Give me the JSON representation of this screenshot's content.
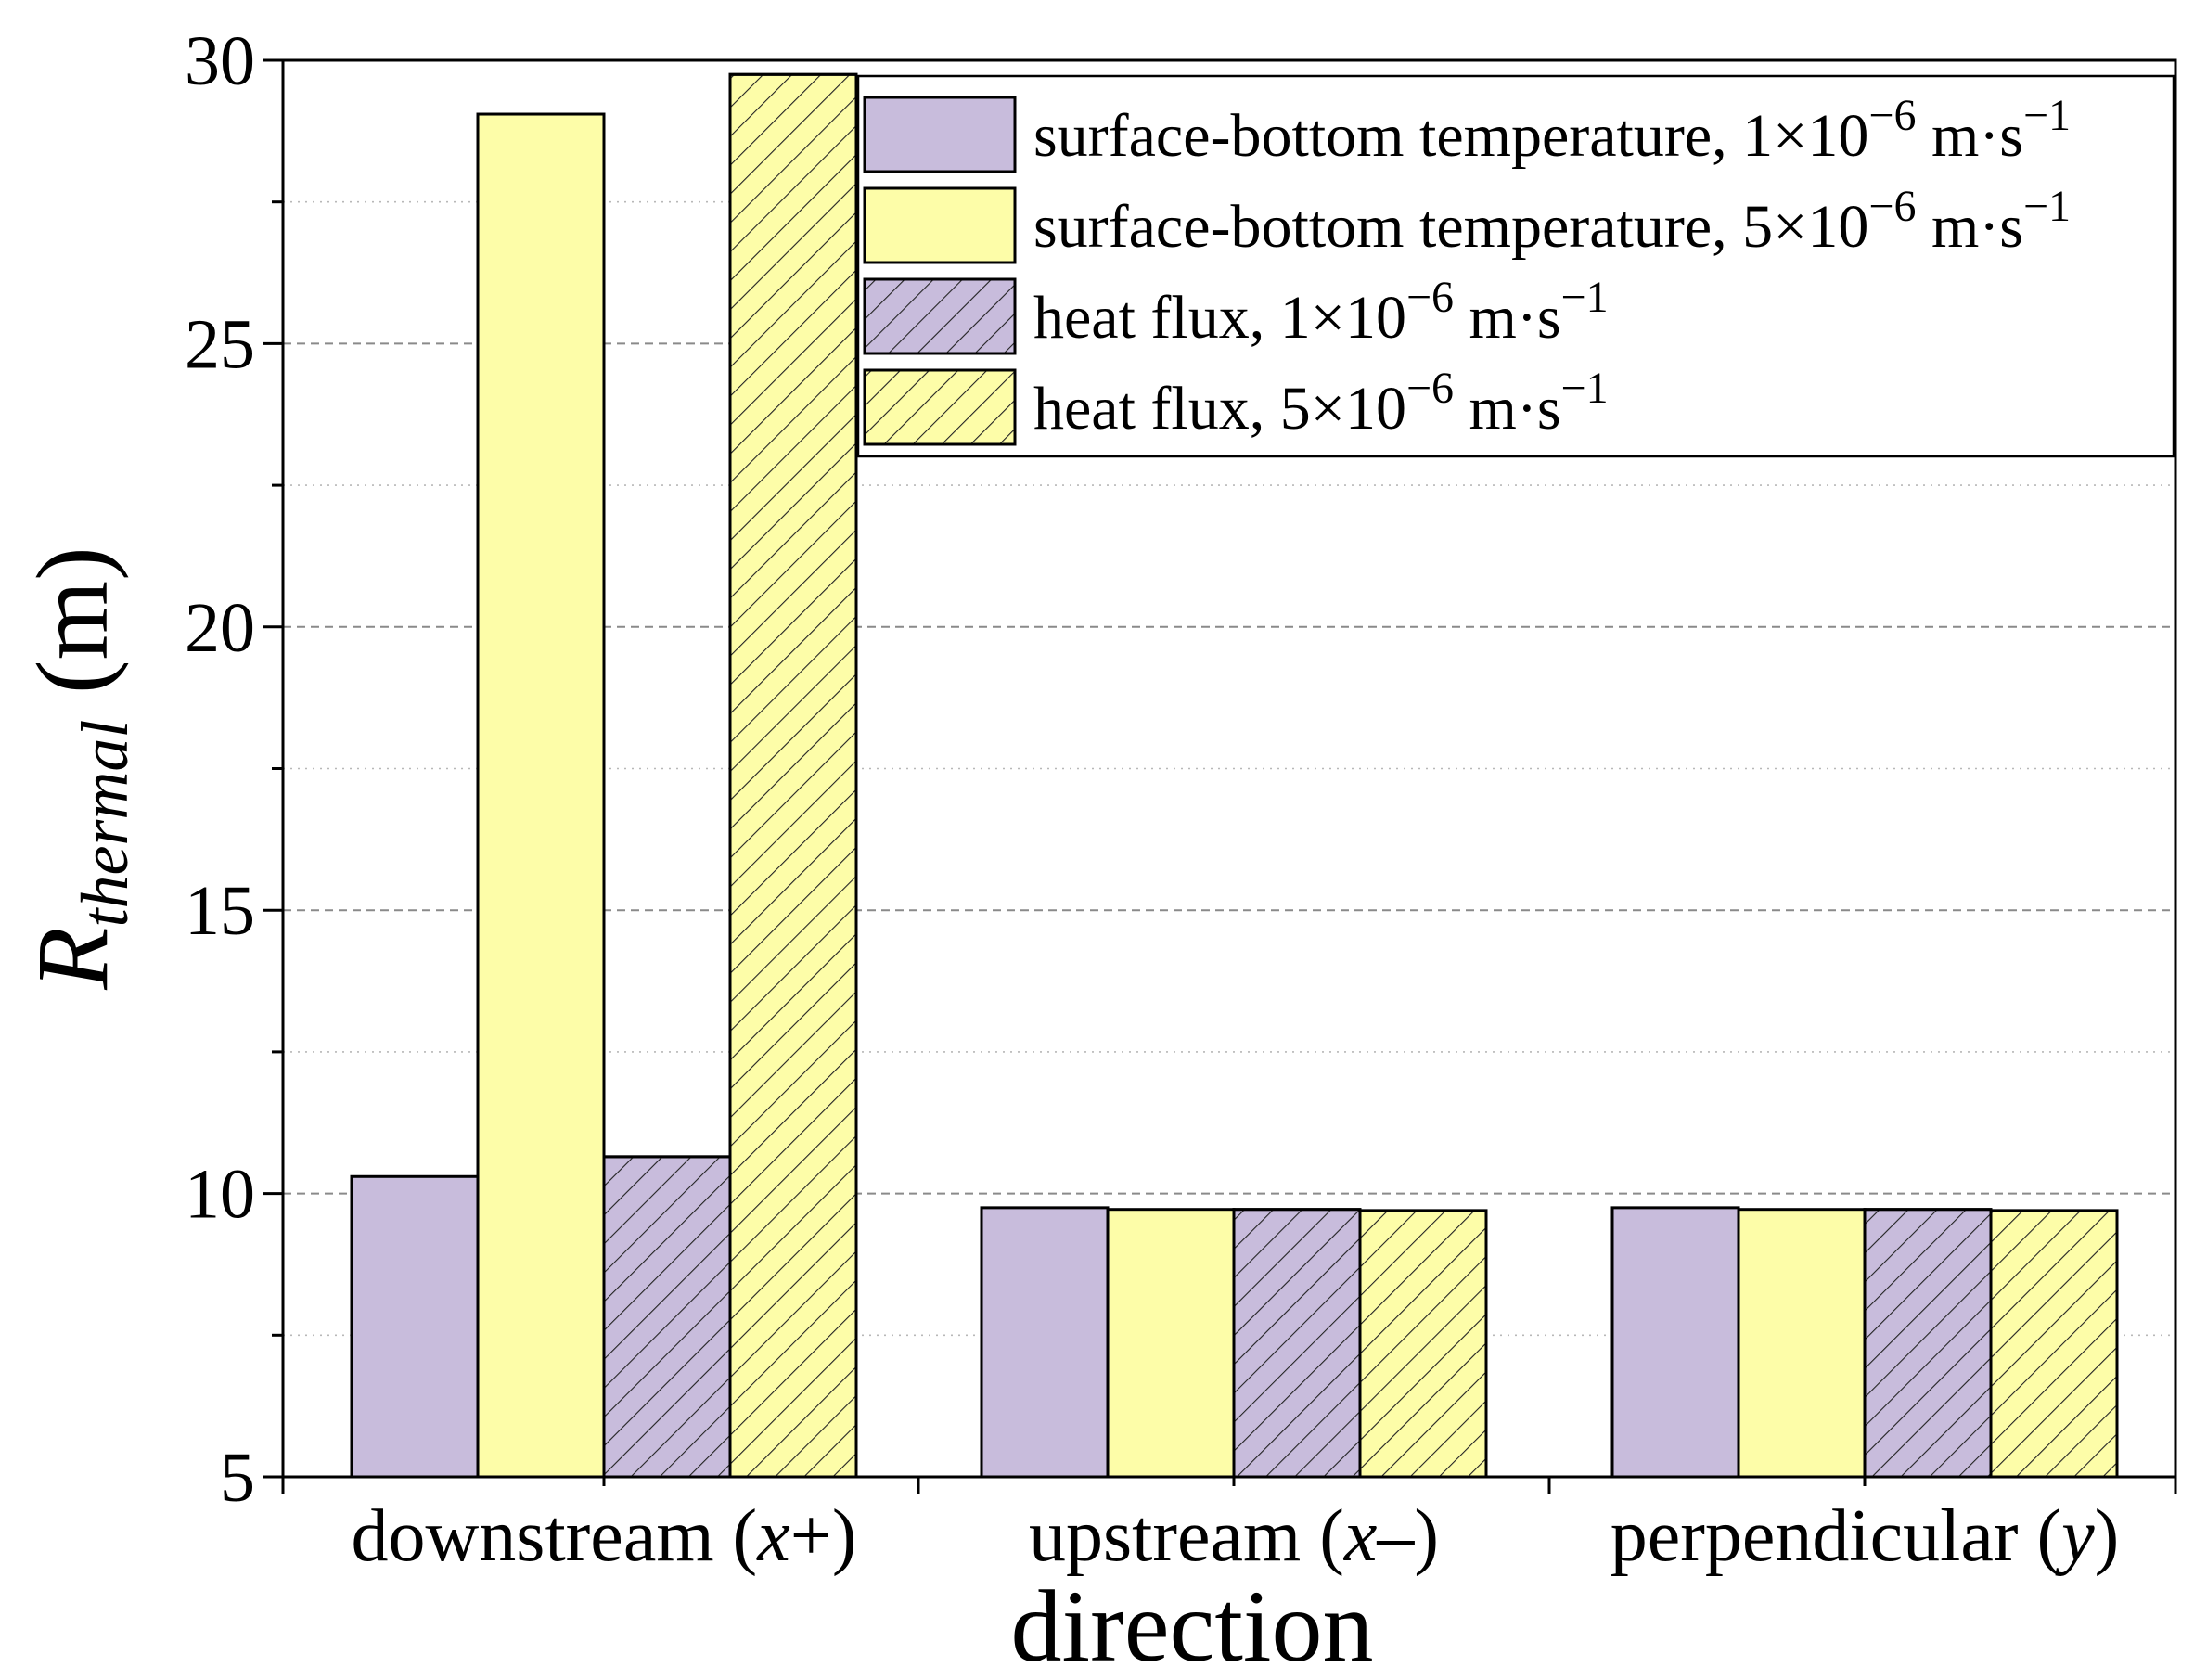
{
  "chart_data": {
    "type": "bar",
    "title": "",
    "xlabel": "direction",
    "ylabel": {
      "main": "R",
      "subscript": "thermal",
      "unit": "(m)"
    },
    "ylim": [
      5,
      30
    ],
    "yticks": [
      "5",
      "10",
      "15",
      "20",
      "25",
      "30"
    ],
    "grid": true,
    "legend_position": "top-right",
    "categories": [
      {
        "label": "downstream (",
        "var": "x",
        "suffix": "+)"
      },
      {
        "label": "upstream (",
        "var": "x",
        "suffix": "–)"
      },
      {
        "label": "perpendicular (",
        "var": "y",
        "suffix": ")"
      }
    ],
    "series": [
      {
        "name": "surface-bottom temperature, 1×10",
        "exp": "−6",
        "unit": " m·s",
        "unit_exp": "−1",
        "values": [
          10.3,
          9.75,
          9.75
        ],
        "color": "#c8bcdc",
        "hatch": false
      },
      {
        "name": "surface-bottom temperature, 5×10",
        "exp": "−6",
        "unit": " m·s",
        "unit_exp": "−1",
        "values": [
          29.05,
          9.72,
          9.72
        ],
        "color": "#fdfda8",
        "hatch": false
      },
      {
        "name": "heat flux, 1×10",
        "exp": "−6",
        "unit": " m·s",
        "unit_exp": "−1",
        "values": [
          10.65,
          9.72,
          9.72
        ],
        "color": "#c8bcdc",
        "hatch": true
      },
      {
        "name": "heat flux, 5×10",
        "exp": "−6",
        "unit": " m·s",
        "unit_exp": "−1",
        "values": [
          29.75,
          9.7,
          9.7
        ],
        "color": "#fdfda8",
        "hatch": true
      }
    ]
  }
}
